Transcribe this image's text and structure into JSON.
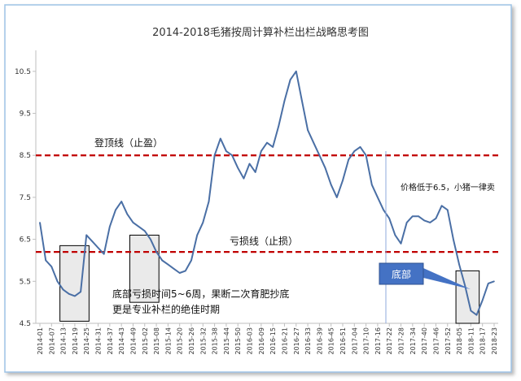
{
  "chart_data": {
    "type": "line",
    "title": "2014-2018毛猪按周计算补栏出栏战略思考图",
    "xlabel": "",
    "ylabel": "",
    "ylim": [
      4.5,
      11.0
    ],
    "yticks": [
      4.5,
      5.5,
      6.5,
      7.5,
      8.5,
      9.5,
      10.5
    ],
    "ytick_labels": [
      "4.5",
      "5.5",
      "6.5",
      "7.5",
      "8.5",
      "9.5",
      "10.5"
    ],
    "xticks": [
      "2014-01",
      "2014-07",
      "2014-13",
      "2014-19",
      "2014-25",
      "2014-31",
      "2014-37",
      "2014-43",
      "2014-49",
      "2015-02",
      "2015-08",
      "2015-14",
      "2015-20",
      "2015-26",
      "2015-32",
      "2015-38",
      "2015-44",
      "2015-50",
      "2016-03",
      "2016-09",
      "2016-15",
      "2016-21",
      "2016-27",
      "2016-33",
      "2016-39",
      "2016-45",
      "2016-51",
      "2017-04",
      "2017-10",
      "2017-16",
      "2017-22",
      "2017-28",
      "2017-34",
      "2017-40",
      "2017-46",
      "2017-52",
      "2018-05",
      "2018-11",
      "2018-17",
      "2018-23"
    ],
    "grid": false,
    "legend": "none",
    "series": [
      {
        "values": [
          6.9,
          6.0,
          5.85,
          5.5,
          5.3,
          5.2,
          5.15,
          5.25,
          6.6,
          6.45,
          6.3,
          6.15,
          6.8,
          7.2,
          7.4,
          7.1,
          6.9,
          6.8,
          6.7,
          6.5,
          6.2,
          6.0,
          5.9,
          5.8,
          5.7,
          5.75,
          6.0,
          6.6,
          6.9,
          7.4,
          8.5,
          8.9,
          8.6,
          8.5,
          8.2,
          7.95,
          8.3,
          8.1,
          8.6,
          8.8,
          8.7,
          9.2,
          9.8,
          10.3,
          10.5,
          9.8,
          9.1,
          8.8,
          8.5,
          8.2,
          7.8,
          7.5,
          7.9,
          8.4,
          8.6,
          8.7,
          8.5,
          7.8,
          7.5,
          7.2,
          7.0,
          6.6,
          6.4,
          6.9,
          7.05,
          7.05,
          6.95,
          6.9,
          7.0,
          7.3,
          7.2,
          6.5,
          5.9,
          5.4,
          4.8,
          4.7,
          5.05,
          5.45,
          5.5
        ]
      }
    ],
    "reference_lines": [
      {
        "value": 8.5,
        "label": "登顶线（止盈）",
        "color": "#c00000"
      },
      {
        "value": 6.2,
        "label": "亏损线（止损）",
        "color": "#c00000"
      }
    ],
    "annotations": {
      "bottom_note_line1": "底部亏损时间5~6周，果断二次育肥抄底",
      "bottom_note_line2": "更是专业补栏的绝佳时期",
      "price_note": "价格低于6.5，小猪一律卖",
      "callout_label": "底部"
    }
  },
  "colors": {
    "series": "#4a6fa5",
    "reference": "#c00000",
    "callout": "#4472c4",
    "box_fill": "#d9d9d9"
  }
}
